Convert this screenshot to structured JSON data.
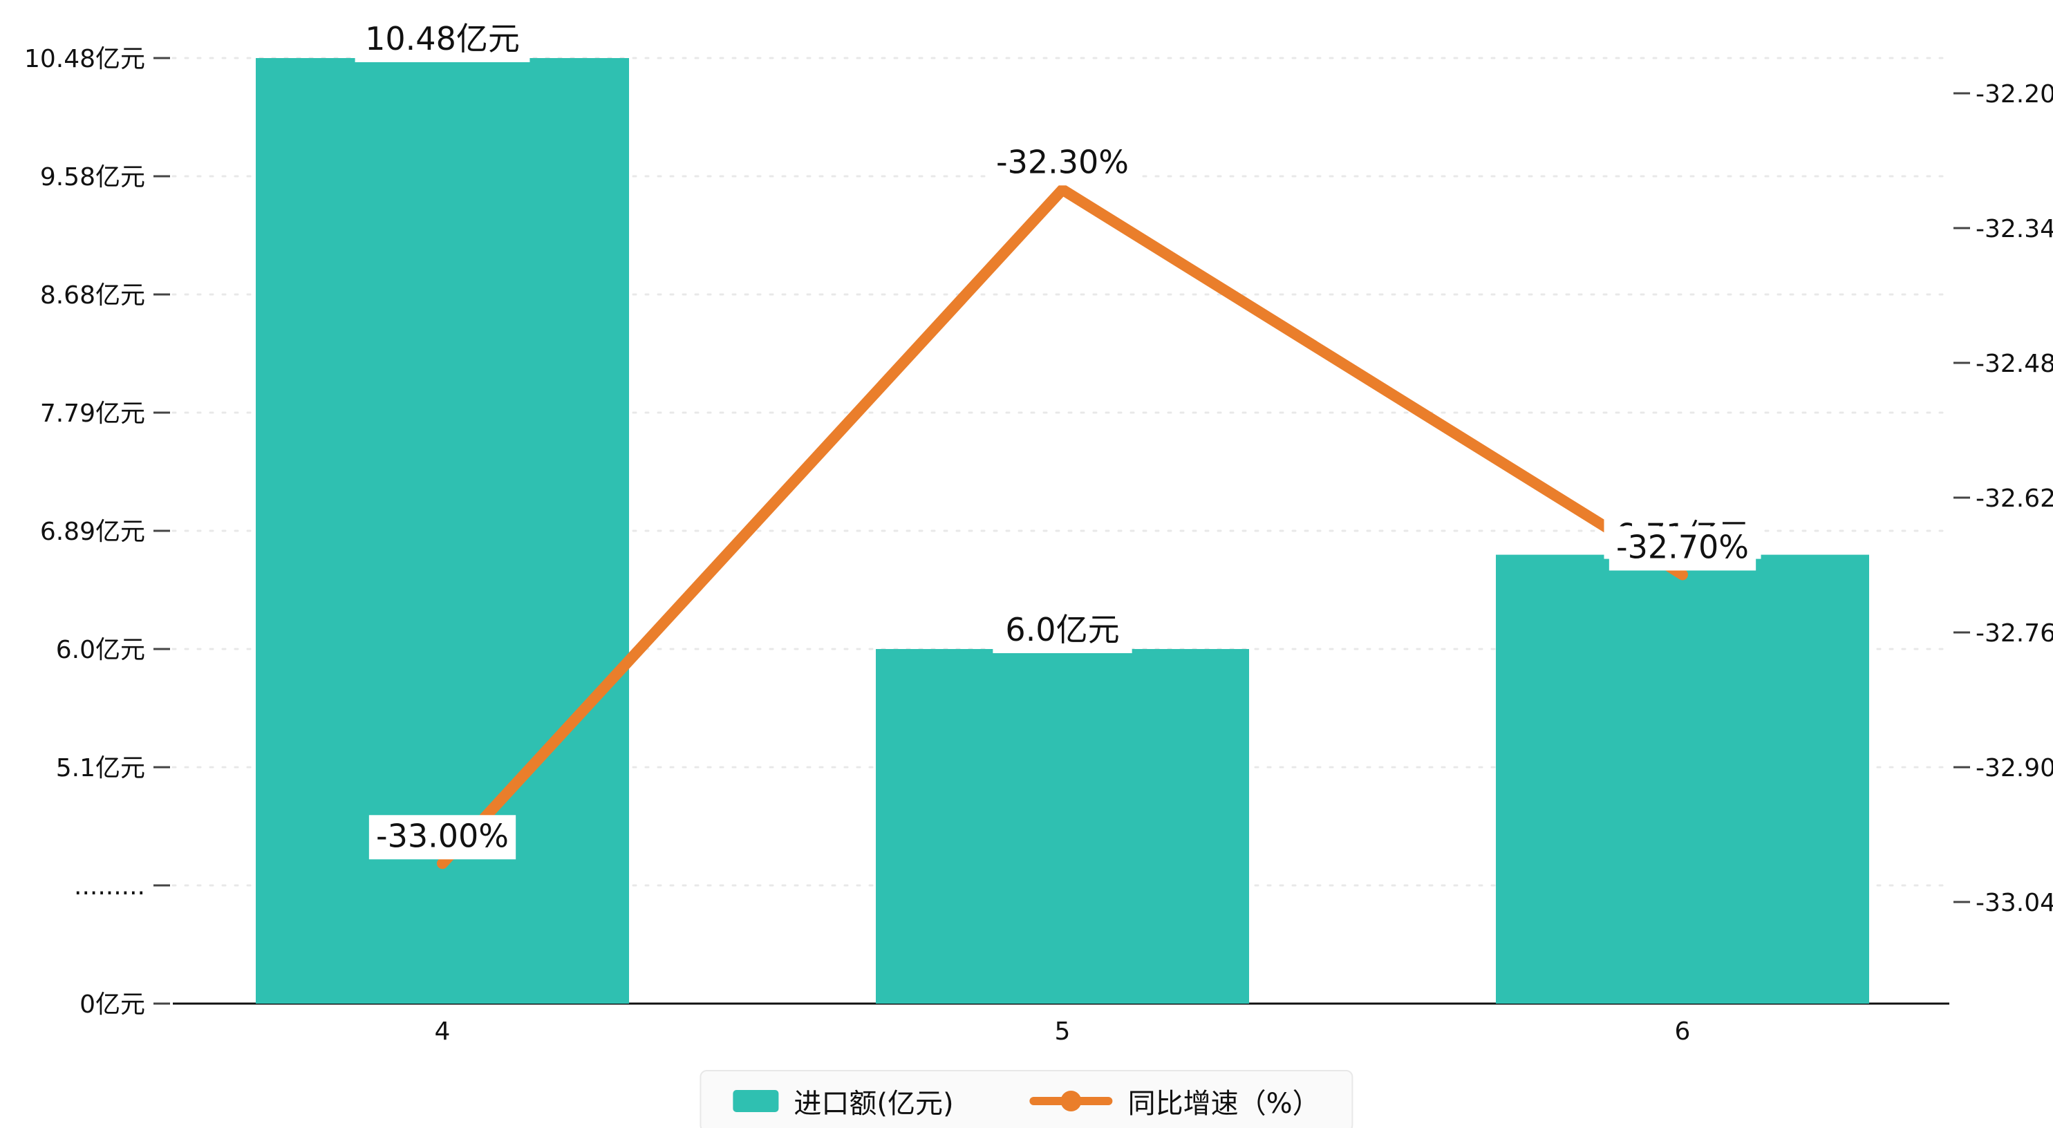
{
  "chart_data": {
    "type": "bar+line",
    "categories": [
      "4",
      "5",
      "6"
    ],
    "series": [
      {
        "name": "进口额(亿元)",
        "type": "bar",
        "axis": "left",
        "values": [
          10.48,
          6.0,
          6.71
        ],
        "labels": [
          "10.48亿元",
          "6.0亿元",
          "6.71亿元"
        ],
        "color": "#2fc0b1"
      },
      {
        "name": "同比增速（%）",
        "type": "line",
        "axis": "right",
        "values": [
          -33.0,
          -32.3,
          -32.7
        ],
        "labels": [
          "-33.00%",
          "-32.30%",
          "-32.70%"
        ],
        "color": "#ea7e2b"
      }
    ],
    "left_axis": {
      "tick_labels": [
        "10.48亿元",
        "9.58亿元",
        "8.68亿元",
        "7.79亿元",
        "6.89亿元",
        "6.0亿元",
        "5.1亿元",
        ".........",
        "0亿元"
      ],
      "tick_values": [
        10.48,
        9.58,
        8.68,
        7.79,
        6.89,
        6.0,
        5.1,
        4.2,
        0
      ]
    },
    "right_axis": {
      "tick_labels": [
        "-32.20",
        "-32.34",
        "-32.48",
        "-32.62",
        "-32.76",
        "-32.90",
        "-33.04"
      ],
      "tick_values": [
        -32.2,
        -32.34,
        -32.48,
        -32.62,
        -32.76,
        -32.9,
        -33.04
      ],
      "range": [
        -33.04,
        -32.2
      ]
    },
    "grid": true,
    "legend_position": "bottom-center",
    "legend": [
      {
        "label": "进口额(亿元)",
        "marker": "bar-swatch",
        "color": "#2fc0b1"
      },
      {
        "label": "同比增速（%）",
        "marker": "line-dot",
        "color": "#ea7e2b"
      }
    ],
    "colors": {
      "bar": "#2fc0b1",
      "line": "#ea7e2b",
      "text": "#111111",
      "grid": "#e8e8e8",
      "axis": "#111111",
      "label_bg": "#ffffff"
    }
  }
}
